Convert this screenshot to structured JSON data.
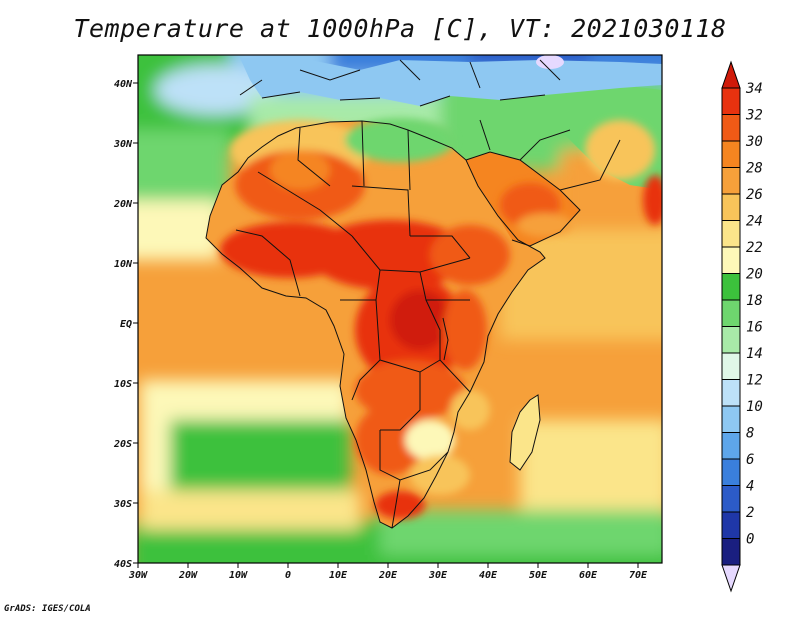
{
  "title": "Temperature at 1000hPa [C], VT: 2021030118",
  "credit": "GrADS: IGES/COLA",
  "map": {
    "lon_ticks": [
      "30W",
      "20W",
      "10W",
      "0",
      "10E",
      "20E",
      "30E",
      "40E",
      "50E",
      "60E",
      "70E"
    ],
    "lat_ticks": [
      "40N",
      "30N",
      "20N",
      "10N",
      "EQ",
      "10S",
      "20S",
      "30S",
      "40S"
    ]
  },
  "colorbar": {
    "levels": [
      "34",
      "32",
      "30",
      "28",
      "26",
      "24",
      "22",
      "20",
      "18",
      "16",
      "14",
      "12",
      "10",
      "8",
      "6",
      "4",
      "2",
      "0"
    ],
    "colors": [
      "#e8320f",
      "#f05a16",
      "#f58520",
      "#f6a03a",
      "#f8c45a",
      "#fbe58a",
      "#fdf8b8",
      "#3cc13c",
      "#6ed66e",
      "#a8eaa8",
      "#e0f7e8",
      "#bde1f8",
      "#8ec8f2",
      "#5ea6ea",
      "#3a7fdc",
      "#2c5bc8",
      "#1f37a8",
      "#1a1f80"
    ],
    "top_color": "#d01a0a",
    "bottom_color": "#e6d9ff"
  }
}
